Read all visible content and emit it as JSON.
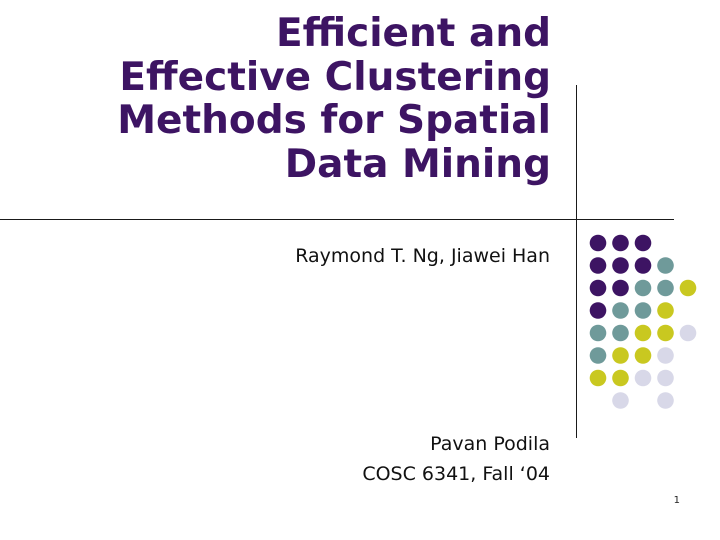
{
  "slide": {
    "title_lines": [
      "Efficient and",
      "Effective Clustering",
      "Methods for Spatial",
      "Data Mining"
    ],
    "authors": "Raymond T. Ng, Jiawei Han",
    "presenter_lines": [
      "Pavan Podila",
      "COSC 6341, Fall ‘04"
    ],
    "page_number": "1"
  },
  "colors": {
    "title": "#3d1463",
    "purple": "#3d1463",
    "teal": "#6f9a9a",
    "olive": "#c9c820",
    "lavender": "#d8d8e8"
  },
  "decoration": {
    "dot_grid": [
      [
        "purple",
        "purple",
        "purple",
        null,
        null
      ],
      [
        "purple",
        "purple",
        "purple",
        "teal",
        null
      ],
      [
        "purple",
        "purple",
        "teal",
        "teal",
        "olive"
      ],
      [
        "purple",
        "teal",
        "teal",
        "olive",
        null
      ],
      [
        "teal",
        "teal",
        "olive",
        "olive",
        "lavender"
      ],
      [
        "teal",
        "olive",
        "olive",
        "lavender",
        null
      ],
      [
        "olive",
        "olive",
        "lavender",
        "lavender",
        null
      ],
      [
        null,
        "lavender",
        null,
        "lavender",
        null
      ]
    ]
  }
}
